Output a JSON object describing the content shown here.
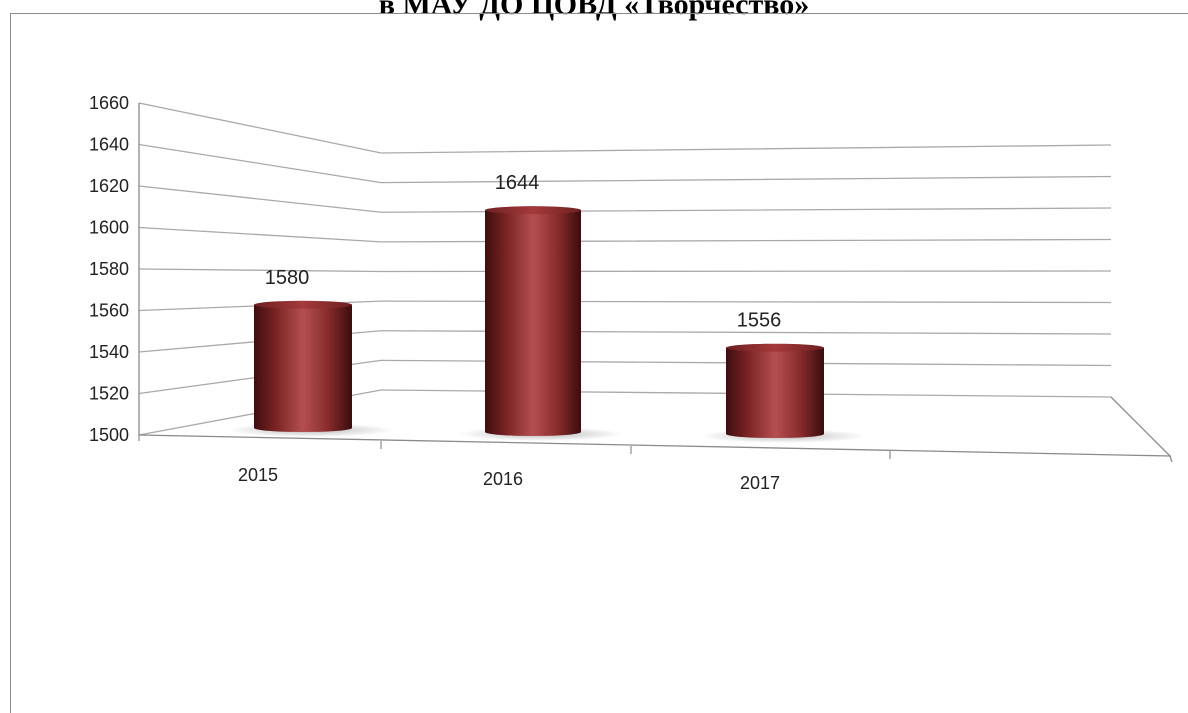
{
  "chart_title": "в МАУ ДО ЦОВД «Творчество»",
  "chart_data": {
    "type": "bar",
    "style": "3d-cylinder",
    "categories": [
      "2015",
      "2016",
      "2017"
    ],
    "values": [
      1580,
      1644,
      1556
    ],
    "data_labels": [
      "1580",
      "1644",
      "1556"
    ],
    "ylim": [
      1500,
      1660
    ],
    "yticks": [
      1500,
      1520,
      1540,
      1560,
      1580,
      1600,
      1620,
      1640,
      1660
    ],
    "title": "в МАУ ДО ЦОВД «Творчество»",
    "xlabel": "",
    "ylabel": "",
    "grid": true,
    "legend": "none",
    "bar_color": "#a4393a"
  }
}
